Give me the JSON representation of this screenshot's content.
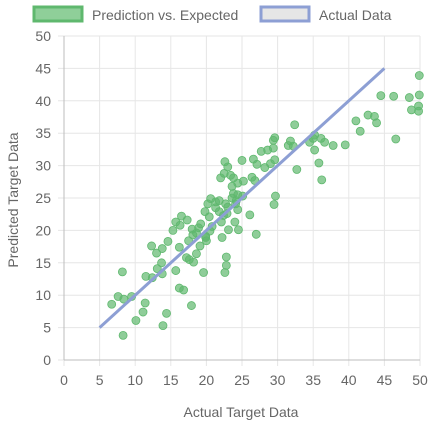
{
  "chart_data": {
    "type": "scatter",
    "xlabel": "Actual Target Data",
    "ylabel": "Predicted Target Data",
    "xlim": [
      0,
      50
    ],
    "ylim": [
      0,
      50
    ],
    "x_ticks": [
      "0",
      "5",
      "10",
      "15",
      "20",
      "25",
      "30",
      "35",
      "40",
      "45",
      "50"
    ],
    "y_ticks": [
      "0",
      "5",
      "10",
      "15",
      "20",
      "25",
      "30",
      "35",
      "40",
      "45",
      "50"
    ],
    "grid": true,
    "legend_position": "top",
    "series": [
      {
        "name": "Prediction vs. Expected",
        "type": "scatter",
        "color": "#5fb86e",
        "points": [
          [
            8.3,
            3.8
          ],
          [
            6.7,
            8.6
          ],
          [
            7.6,
            9.8
          ],
          [
            8.4,
            9.4
          ],
          [
            9.5,
            9.8
          ],
          [
            8.2,
            13.6
          ],
          [
            10.1,
            6.1
          ],
          [
            11.4,
            8.8
          ],
          [
            11.1,
            7.4
          ],
          [
            13.9,
            5.3
          ],
          [
            14.4,
            7.2
          ],
          [
            11.5,
            12.9
          ],
          [
            12.4,
            12.7
          ],
          [
            13.7,
            15.0
          ],
          [
            13.1,
            14.1
          ],
          [
            13.8,
            13.3
          ],
          [
            13.0,
            16.5
          ],
          [
            13.8,
            17.2
          ],
          [
            12.3,
            17.6
          ],
          [
            14.6,
            18.3
          ],
          [
            16.2,
            17.4
          ],
          [
            15.3,
            20.0
          ],
          [
            16.3,
            20.8
          ],
          [
            15.7,
            21.3
          ],
          [
            16.5,
            22.2
          ],
          [
            17.3,
            21.6
          ],
          [
            15.7,
            13.8
          ],
          [
            16.2,
            11.1
          ],
          [
            17.2,
            15.8
          ],
          [
            18.2,
            15.1
          ],
          [
            17.6,
            15.5
          ],
          [
            16.8,
            10.8
          ],
          [
            17.9,
            8.4
          ],
          [
            19.6,
            13.5
          ],
          [
            18.6,
            16.4
          ],
          [
            19.1,
            17.6
          ],
          [
            17.5,
            18.4
          ],
          [
            18.1,
            19.3
          ],
          [
            18.6,
            19.6
          ],
          [
            18.0,
            20.2
          ],
          [
            18.9,
            20.4
          ],
          [
            19.2,
            21.0
          ],
          [
            19.8,
            22.9
          ],
          [
            20.2,
            24.1
          ],
          [
            21.3,
            24.4
          ],
          [
            20.6,
            24.9
          ],
          [
            21.3,
            23.5
          ],
          [
            20.4,
            22.1
          ],
          [
            21.8,
            22.9
          ],
          [
            22.4,
            22.3
          ],
          [
            22.1,
            21.3
          ],
          [
            20.8,
            20.6
          ],
          [
            20.5,
            19.9
          ],
          [
            19.9,
            19.1
          ],
          [
            20.0,
            18.4
          ],
          [
            19.9,
            18.9
          ],
          [
            21.8,
            24.6
          ],
          [
            22.7,
            24.1
          ],
          [
            23.0,
            23.6
          ],
          [
            22.9,
            22.6
          ],
          [
            24.1,
            24.1
          ],
          [
            23.6,
            25.0
          ],
          [
            24.4,
            25.5
          ],
          [
            25.1,
            25.3
          ],
          [
            24.2,
            24.6
          ],
          [
            23.8,
            25.7
          ],
          [
            23.6,
            26.8
          ],
          [
            23.8,
            28.1
          ],
          [
            23.4,
            28.5
          ],
          [
            22.5,
            28.8
          ],
          [
            22.0,
            28.1
          ],
          [
            23.0,
            29.8
          ],
          [
            22.6,
            30.6
          ],
          [
            24.4,
            27.3
          ],
          [
            25.2,
            27.6
          ],
          [
            25.0,
            30.8
          ],
          [
            24.4,
            23.2
          ],
          [
            24.0,
            21.3
          ],
          [
            24.5,
            20.1
          ],
          [
            23.1,
            20.1
          ],
          [
            22.2,
            18.9
          ],
          [
            22.8,
            14.6
          ],
          [
            22.6,
            13.5
          ],
          [
            22.8,
            15.9
          ],
          [
            26.4,
            28.2
          ],
          [
            26.8,
            27.7
          ],
          [
            26.6,
            31.0
          ],
          [
            26.1,
            22.4
          ],
          [
            27.0,
            19.4
          ],
          [
            27.7,
            32.2
          ],
          [
            27.1,
            30.2
          ],
          [
            28.2,
            29.7
          ],
          [
            28.6,
            32.4
          ],
          [
            29.0,
            30.3
          ],
          [
            29.4,
            32.7
          ],
          [
            29.6,
            30.9
          ],
          [
            29.6,
            34.3
          ],
          [
            29.4,
            33.9
          ],
          [
            29.7,
            25.3
          ],
          [
            29.5,
            24.0
          ],
          [
            31.8,
            33.8
          ],
          [
            31.5,
            33.1
          ],
          [
            32.2,
            33.0
          ],
          [
            32.4,
            36.3
          ],
          [
            32.7,
            29.4
          ],
          [
            35.0,
            34.2
          ],
          [
            35.2,
            34.7
          ],
          [
            34.5,
            33.6
          ],
          [
            35.2,
            32.4
          ],
          [
            35.8,
            30.4
          ],
          [
            36.2,
            27.8
          ],
          [
            36.1,
            34.2
          ],
          [
            36.6,
            33.6
          ],
          [
            37.8,
            33.1
          ],
          [
            39.5,
            33.2
          ],
          [
            41.0,
            36.9
          ],
          [
            41.6,
            35.3
          ],
          [
            42.7,
            37.8
          ],
          [
            43.6,
            37.6
          ],
          [
            43.9,
            36.6
          ],
          [
            44.5,
            40.8
          ],
          [
            46.3,
            40.7
          ],
          [
            46.6,
            34.1
          ],
          [
            48.5,
            40.5
          ],
          [
            48.8,
            38.6
          ],
          [
            49.8,
            39.2
          ],
          [
            49.8,
            38.4
          ],
          [
            49.9,
            40.9
          ],
          [
            49.9,
            43.9
          ]
        ]
      },
      {
        "name": "Actual Data",
        "type": "line",
        "color": "#8d9fd4",
        "points": [
          [
            5,
            5
          ],
          [
            45,
            45
          ]
        ]
      }
    ]
  }
}
